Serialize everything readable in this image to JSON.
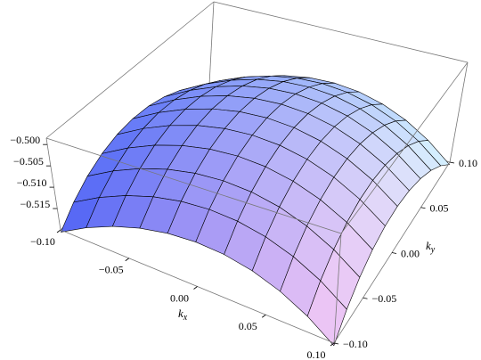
{
  "chart_data": {
    "type": "surface3d",
    "xlabel": "kx",
    "ylabel": "ky",
    "x": [
      -0.1,
      -0.08,
      -0.06,
      -0.04,
      -0.02,
      0,
      0.02,
      0.04,
      0.06,
      0.08,
      0.1
    ],
    "y": [
      -0.1,
      -0.08,
      -0.06,
      -0.04,
      -0.02,
      0,
      0.02,
      0.04,
      0.06,
      0.08,
      0.1
    ],
    "z": [
      [
        -0.5205,
        -0.5169,
        -0.5141,
        -0.5121,
        -0.5109,
        -0.5105,
        -0.5109,
        -0.5121,
        -0.5141,
        -0.5169,
        -0.5205
      ],
      [
        -0.5169,
        -0.5133,
        -0.5105,
        -0.5085,
        -0.5073,
        -0.5069,
        -0.5073,
        -0.5085,
        -0.5105,
        -0.5133,
        -0.5169
      ],
      [
        -0.5141,
        -0.5105,
        -0.5077,
        -0.5057,
        -0.5045,
        -0.5041,
        -0.5045,
        -0.5057,
        -0.5077,
        -0.5105,
        -0.5141
      ],
      [
        -0.5121,
        -0.5085,
        -0.5057,
        -0.5037,
        -0.5025,
        -0.5021,
        -0.5025,
        -0.5037,
        -0.5057,
        -0.5085,
        -0.5121
      ],
      [
        -0.5109,
        -0.5073,
        -0.5045,
        -0.5025,
        -0.5013,
        -0.5009,
        -0.5013,
        -0.5025,
        -0.5045,
        -0.5073,
        -0.5109
      ],
      [
        -0.5105,
        -0.5069,
        -0.5041,
        -0.5021,
        -0.5009,
        -0.5005,
        -0.5009,
        -0.5021,
        -0.5041,
        -0.5069,
        -0.5105
      ],
      [
        -0.5109,
        -0.5073,
        -0.5045,
        -0.5025,
        -0.5013,
        -0.5009,
        -0.5013,
        -0.5025,
        -0.5045,
        -0.5073,
        -0.5109
      ],
      [
        -0.5121,
        -0.5085,
        -0.5057,
        -0.5037,
        -0.5025,
        -0.5021,
        -0.5025,
        -0.5037,
        -0.5057,
        -0.5085,
        -0.5121
      ],
      [
        -0.5141,
        -0.5105,
        -0.5077,
        -0.5057,
        -0.5045,
        -0.5041,
        -0.5045,
        -0.5057,
        -0.5077,
        -0.5105,
        -0.5141
      ],
      [
        -0.5169,
        -0.5133,
        -0.5105,
        -0.5085,
        -0.5073,
        -0.5069,
        -0.5073,
        -0.5085,
        -0.5105,
        -0.5133,
        -0.5169
      ],
      [
        -0.5205,
        -0.5169,
        -0.5141,
        -0.5121,
        -0.5109,
        -0.5105,
        -0.5109,
        -0.5121,
        -0.5141,
        -0.5169,
        -0.5205
      ]
    ],
    "xlim": [
      -0.1,
      0.1
    ],
    "ylim": [
      -0.1,
      0.1
    ],
    "zlim": [
      -0.52,
      -0.4985
    ],
    "xticks": [
      {
        "value": -0.1,
        "label": "−0.10"
      },
      {
        "value": -0.05,
        "label": "−0.05"
      },
      {
        "value": 0,
        "label": "0.00"
      },
      0.05,
      {
        "value": 0.1,
        "label": "0.10"
      }
    ],
    "yticks": [
      {
        "value": -0.1,
        "label": "−0.10"
      },
      {
        "value": -0.05,
        "label": "−0.05"
      },
      {
        "value": 0,
        "label": "0.00"
      },
      0.05,
      {
        "value": 0.1,
        "label": "0.10"
      }
    ],
    "zticks": [
      {
        "value": -0.5,
        "label": "−0.500"
      },
      {
        "value": -0.505,
        "label": "−0.505"
      },
      {
        "value": -0.51,
        "label": "−0.510"
      },
      {
        "value": -0.515,
        "label": "−0.515"
      }
    ]
  }
}
